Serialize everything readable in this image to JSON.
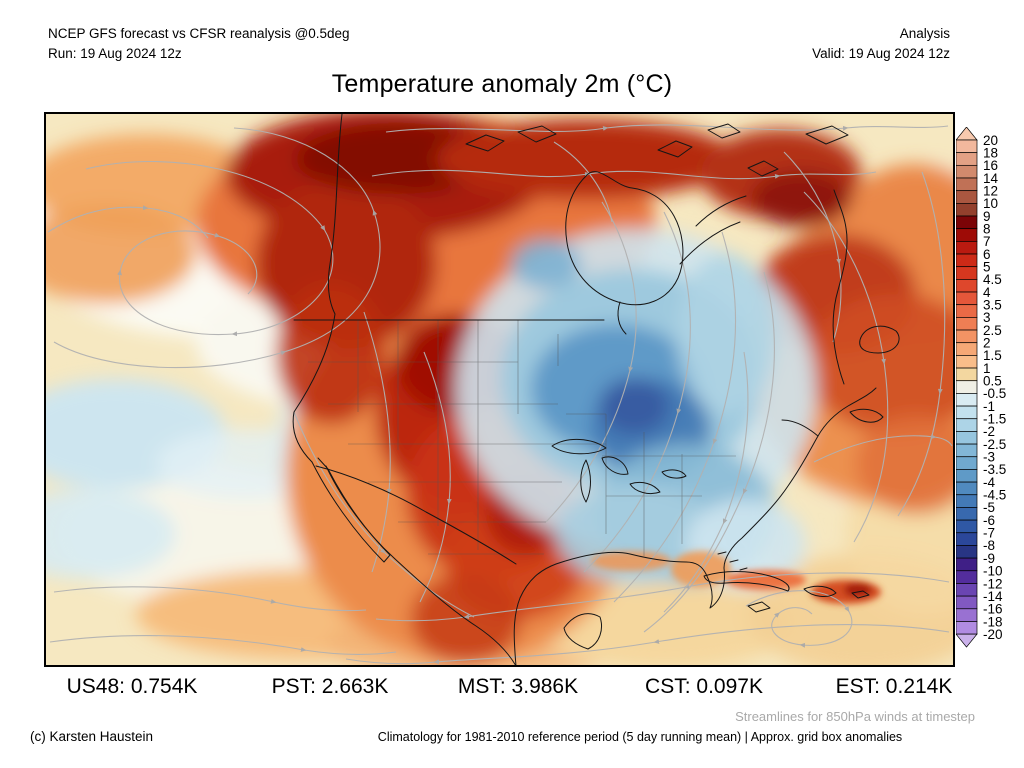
{
  "header": {
    "product": "NCEP GFS forecast vs CFSR reanalysis @0.5deg",
    "run": "Run: 19 Aug 2024 12z",
    "mode": "Analysis",
    "valid": "Valid: 19 Aug 2024 12z"
  },
  "title": "Temperature anomaly 2m (°C)",
  "colorbar": {
    "ticks": [
      "20",
      "18",
      "16",
      "14",
      "12",
      "10",
      "9",
      "8",
      "7",
      "6",
      "5",
      "4.5",
      "4",
      "3.5",
      "3",
      "2.5",
      "2",
      "1.5",
      "1",
      "0.5",
      "-0.5",
      "-1",
      "-1.5",
      "-2",
      "-2.5",
      "-3",
      "-3.5",
      "-4",
      "-4.5",
      "-5",
      "-6",
      "-7",
      "-8",
      "-9",
      "-10",
      "-12",
      "-14",
      "-16",
      "-18",
      "-20"
    ],
    "segment_colors": [
      "#f2b89d",
      "#e3a185",
      "#d28a6d",
      "#c07156",
      "#aa5740",
      "#93402d",
      "#7b0407",
      "#9e0b06",
      "#ba1a10",
      "#cd2a17",
      "#d6371f",
      "#de472c",
      "#e5573a",
      "#ea6a46",
      "#ef7e54",
      "#f39364",
      "#f6a876",
      "#f9bd8a",
      "#f3d7a0",
      "#f0efe5",
      "#d9ebf2",
      "#c3e1ee",
      "#add4e7",
      "#97c6df",
      "#82b7d7",
      "#70a9cf",
      "#5f9ac7",
      "#508abf",
      "#437ab7",
      "#3869ae",
      "#2f58a5",
      "#2b479a",
      "#283584",
      "#3f1f86",
      "#532d9d",
      "#6a45b2",
      "#8159c2",
      "#9971d2",
      "#b18ce2"
    ],
    "over_color": "#f7c9ae",
    "under_color": "#cab1ea",
    "outline_color": "#000000"
  },
  "region_stats": [
    {
      "label": "US48",
      "value": "0.754K"
    },
    {
      "label": "PST",
      "value": "2.663K"
    },
    {
      "label": "MST",
      "value": "3.986K"
    },
    {
      "label": "CST",
      "value": "0.097K"
    },
    {
      "label": "EST",
      "value": "0.214K"
    }
  ],
  "footer": {
    "streamline_note": "Streamlines for 850hPa winds at timestep",
    "copyright": "(c) Karsten Haustein",
    "climatology_note": "Climatology for 1981-2010 reference period (5 day running mean) | Approx. grid box anomalies"
  }
}
